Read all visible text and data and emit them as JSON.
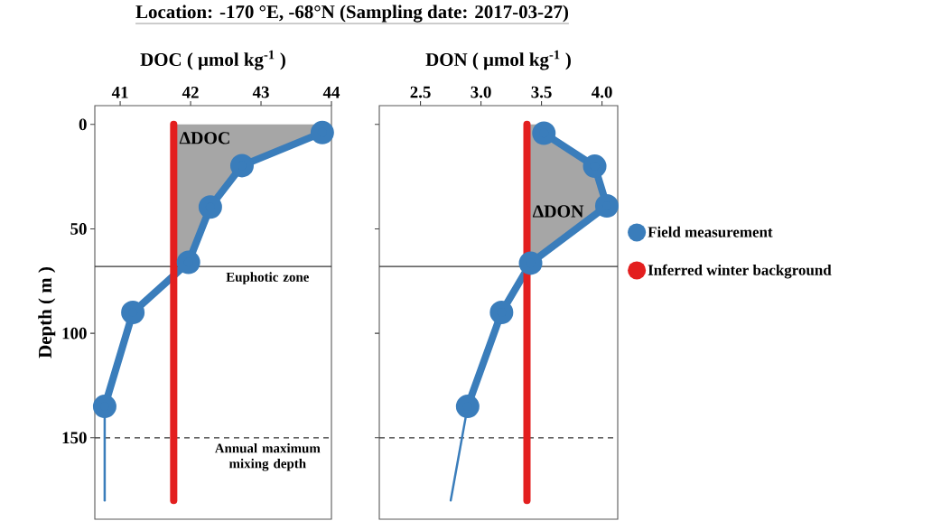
{
  "chart_data": [
    {
      "type": "line",
      "title": "Location: -170 °E,  -68°N (Sampling date: 2017-03-27)",
      "xlabel": "DOC ( μmol kg$^{-1}$ )",
      "ylabel": "Depth ( m )",
      "xlim": [
        40.64,
        44.0
      ],
      "xticks": [
        41,
        42,
        43,
        44
      ],
      "ylim": [
        189,
        -9
      ],
      "yticks": [
        0,
        50,
        100,
        150
      ],
      "series": [
        {
          "color": "#3a7dbb",
          "marker": "circle",
          "x": [
            43.87,
            42.73,
            42.28,
            41.97,
            41.18,
            40.78
          ],
          "values": [
            3.9,
            19.7,
            39.5,
            66,
            90,
            135
          ]
        },
        {
          "color": "#3a7dbb",
          "marker": "none",
          "x": [
            40.78,
            40.78
          ],
          "values": [
            135,
            180
          ]
        },
        {
          "color": "#e31f1f",
          "marker": "none",
          "x": [
            41.76,
            41.76
          ],
          "values": [
            0,
            180
          ]
        }
      ],
      "ref_lines": [
        {
          "axis": "y",
          "value": 68,
          "label": "Euphotic zone",
          "line_style": "solid"
        },
        {
          "axis": "y",
          "value": 150,
          "label": "Annual maximum mixing depth",
          "line_style": "dashed"
        }
      ],
      "annotations": [
        "ΔDOC"
      ]
    },
    {
      "type": "line",
      "xlabel": "DON ( μmol kg$^{-1}$ )",
      "xlim": [
        2.16,
        4.13
      ],
      "xticks": [
        2.5,
        {
          "value": 3.0,
          "label": "3.0"
        },
        3.5,
        {
          "value": 4.0,
          "label": "4.0"
        }
      ],
      "ylim": [
        189,
        -9
      ],
      "yticks": [
        0,
        50,
        100,
        150
      ],
      "tick_labels": "x",
      "legend": "right",
      "series": [
        {
          "name": "Field measurement",
          "color": "#3a7dbb",
          "marker": "circle",
          "x": [
            3.52,
            3.94,
            4.04,
            3.41,
            3.17,
            2.89
          ],
          "values": [
            4.2,
            20,
            39,
            66.4,
            90,
            135
          ]
        },
        {
          "color": "#3a7dbb",
          "marker": "none",
          "x": [
            2.89,
            2.75
          ],
          "values": [
            135,
            180
          ]
        },
        {
          "name": "Inferred winter background",
          "color": "#e31f1f",
          "marker": "none",
          "x": [
            3.38,
            3.38
          ],
          "values": [
            0,
            180
          ]
        }
      ],
      "ref_lines": [
        {
          "axis": "y",
          "value": 68,
          "line_style": "solid"
        },
        {
          "axis": "y",
          "value": 150,
          "line_style": "dashed"
        }
      ],
      "annotations": [
        "ΔDON"
      ]
    }
  ]
}
